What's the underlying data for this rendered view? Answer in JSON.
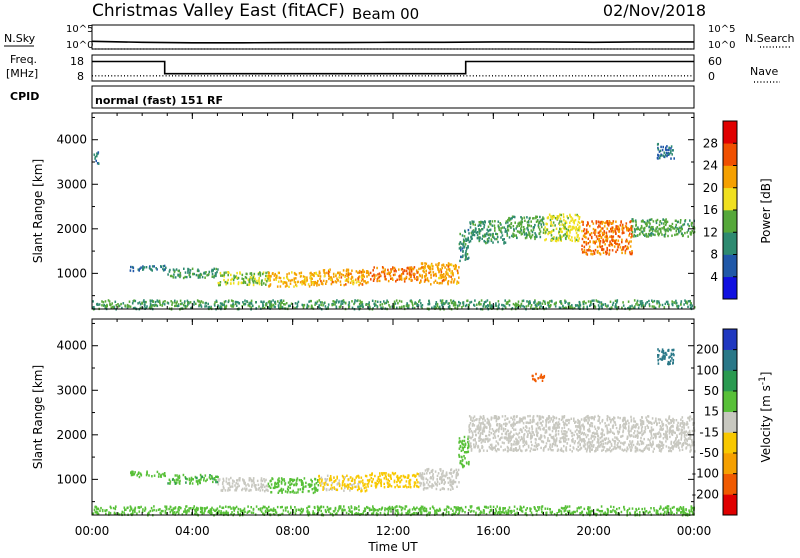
{
  "header": {
    "title": "Christmas Valley East (fitACF)",
    "beam": "Beam 00",
    "date": "02/Nov/2018"
  },
  "strip_labels": {
    "n_sky": "N.Sky",
    "n_search": "N.Search",
    "freq": "Freq.",
    "freq_unit": "[MHz]",
    "nave": "Nave",
    "cpid": "CPID",
    "cpid_value": "normal (fast) 151 RF"
  },
  "strip_ticks": {
    "noise_left": [
      "10^5",
      "10^0"
    ],
    "noise_right": [
      "10^5",
      "10^0"
    ],
    "freq_left": [
      "18",
      "8"
    ],
    "freq_right": [
      "60",
      "0"
    ]
  },
  "colors": {
    "power_scale": [
      "#1010e0",
      "#2058a8",
      "#2e8a70",
      "#56a83a",
      "#f0e020",
      "#f5a000",
      "#f05000",
      "#e00000"
    ],
    "velocity_scale": [
      "#e00000",
      "#f05a00",
      "#f5a000",
      "#f8c800",
      "#c8c8c0",
      "#58c038",
      "#2a9a50",
      "#2a7888",
      "#2038c0"
    ],
    "frame": "#000000"
  },
  "chart_data": [
    {
      "type": "line",
      "title": "",
      "ylabel": "N.Sky",
      "y_scale": "log",
      "ylim": [
        1,
        100000
      ],
      "xlim": [
        "00:00",
        "24:00"
      ],
      "series": [
        {
          "name": "N.Sky",
          "x": [
            "00:00",
            "02:00",
            "04:00",
            "06:00",
            "08:00",
            "10:00",
            "12:00",
            "14:00",
            "16:00",
            "18:00",
            "20:00",
            "22:00",
            "24:00"
          ],
          "values": [
            40,
            25,
            20,
            20,
            22,
            22,
            25,
            25,
            30,
            30,
            25,
            30,
            30
          ]
        },
        {
          "name": "N.Search",
          "x": [
            "00:00",
            "04:00",
            "08:00",
            "12:00",
            "16:00",
            "20:00",
            "24:00"
          ],
          "values": [
            1,
            1,
            1,
            1,
            1,
            1,
            1
          ]
        }
      ]
    },
    {
      "type": "line",
      "title": "",
      "ylabel": "Freq. [MHz]",
      "ylim": [
        8,
        18
      ],
      "xlim": [
        "00:00",
        "24:00"
      ],
      "series": [
        {
          "name": "Freq.",
          "x": [
            "00:00",
            "02:54",
            "02:54",
            "14:54",
            "14:54",
            "24:00"
          ],
          "values": [
            15.5,
            15.5,
            10.8,
            10.8,
            15.5,
            15.5
          ]
        },
        {
          "name": "Nave",
          "x": [
            "00:00",
            "12:00",
            "24:00"
          ],
          "values": [
            12,
            12,
            12
          ]
        }
      ],
      "right_axis": {
        "label": "Nave",
        "ylim": [
          0,
          60
        ]
      }
    },
    {
      "type": "heatmap",
      "title": "",
      "ylabel": "Slant Range [km]",
      "xlabel": "",
      "x_ticks": [
        "00:00",
        "04:00",
        "08:00",
        "12:00",
        "16:00",
        "20:00",
        "00:00"
      ],
      "y_ticks": [
        1000,
        2000,
        3000,
        4000
      ],
      "ylim": [
        200,
        4600
      ],
      "colorbar": {
        "label": "Power [dB]",
        "ticks": [
          4,
          8,
          12,
          16,
          20,
          24,
          28
        ],
        "range": [
          0,
          32
        ]
      },
      "bands": [
        {
          "t": [
            1.5,
            3.0
          ],
          "r": [
            1080,
            1200
          ],
          "v": 8
        },
        {
          "t": [
            3.0,
            5.0
          ],
          "r": [
            920,
            1130
          ],
          "v": 11
        },
        {
          "t": [
            5.0,
            7.0
          ],
          "r": [
            760,
            1060
          ],
          "v": 16
        },
        {
          "t": [
            7.0,
            9.0
          ],
          "r": [
            720,
            1050
          ],
          "v": 21
        },
        {
          "t": [
            9.0,
            11.0
          ],
          "r": [
            760,
            1110
          ],
          "v": 22
        },
        {
          "t": [
            11.0,
            13.0
          ],
          "r": [
            840,
            1170
          ],
          "v": 24
        },
        {
          "t": [
            13.0,
            14.6
          ],
          "r": [
            780,
            1260
          ],
          "v": 22
        },
        {
          "t": [
            14.6,
            15.0
          ],
          "r": [
            1300,
            2000
          ],
          "v": 10
        },
        {
          "t": [
            15.0,
            16.5
          ],
          "r": [
            1700,
            2200
          ],
          "v": 11
        },
        {
          "t": [
            16.5,
            18.0
          ],
          "r": [
            1800,
            2300
          ],
          "v": 13
        },
        {
          "t": [
            18.0,
            19.5
          ],
          "r": [
            1750,
            2350
          ],
          "v": 17
        },
        {
          "t": [
            19.5,
            21.5
          ],
          "r": [
            1450,
            2200
          ],
          "v": 24
        },
        {
          "t": [
            21.5,
            24.0
          ],
          "r": [
            1850,
            2250
          ],
          "v": 13
        },
        {
          "t": [
            0.0,
            24.0
          ],
          "r": [
            220,
            420
          ],
          "v": 12
        },
        {
          "t": [
            0.05,
            0.25
          ],
          "r": [
            3450,
            3750
          ],
          "v": 8
        },
        {
          "t": [
            22.5,
            23.2
          ],
          "r": [
            3600,
            3950
          ],
          "v": 8
        }
      ]
    },
    {
      "type": "heatmap",
      "title": "",
      "ylabel": "Slant Range [km]",
      "xlabel": "Time UT",
      "x_ticks": [
        "00:00",
        "04:00",
        "08:00",
        "12:00",
        "16:00",
        "20:00",
        "00:00"
      ],
      "y_ticks": [
        1000,
        2000,
        3000,
        4000
      ],
      "ylim": [
        200,
        4600
      ],
      "colorbar": {
        "label": "Velocity [m s^-1]",
        "ticks": [
          -200,
          -100,
          -50,
          -15,
          15,
          50,
          100,
          200
        ]
      },
      "bands": [
        {
          "t": [
            1.5,
            3.0
          ],
          "r": [
            1080,
            1200
          ],
          "v": 40
        },
        {
          "t": [
            3.0,
            5.0
          ],
          "r": [
            920,
            1130
          ],
          "v": 45
        },
        {
          "t": [
            5.0,
            7.0
          ],
          "r": [
            760,
            1060
          ],
          "v": 0
        },
        {
          "t": [
            7.0,
            9.0
          ],
          "r": [
            720,
            1050
          ],
          "v": 30
        },
        {
          "t": [
            9.0,
            11.0
          ],
          "r": [
            760,
            1110
          ],
          "v": -20
        },
        {
          "t": [
            11.0,
            13.0
          ],
          "r": [
            840,
            1170
          ],
          "v": -40
        },
        {
          "t": [
            13.0,
            14.6
          ],
          "r": [
            780,
            1260
          ],
          "v": 0
        },
        {
          "t": [
            14.6,
            15.0
          ],
          "r": [
            1300,
            2000
          ],
          "v": 30
        },
        {
          "t": [
            15.0,
            24.0
          ],
          "r": [
            1650,
            2450
          ],
          "v": 0
        },
        {
          "t": [
            0.0,
            24.0
          ],
          "r": [
            220,
            420
          ],
          "v": 40
        },
        {
          "t": [
            17.5,
            18.0
          ],
          "r": [
            3200,
            3400
          ],
          "v": -150
        },
        {
          "t": [
            22.5,
            23.2
          ],
          "r": [
            3600,
            3950
          ],
          "v": 150
        }
      ]
    }
  ]
}
